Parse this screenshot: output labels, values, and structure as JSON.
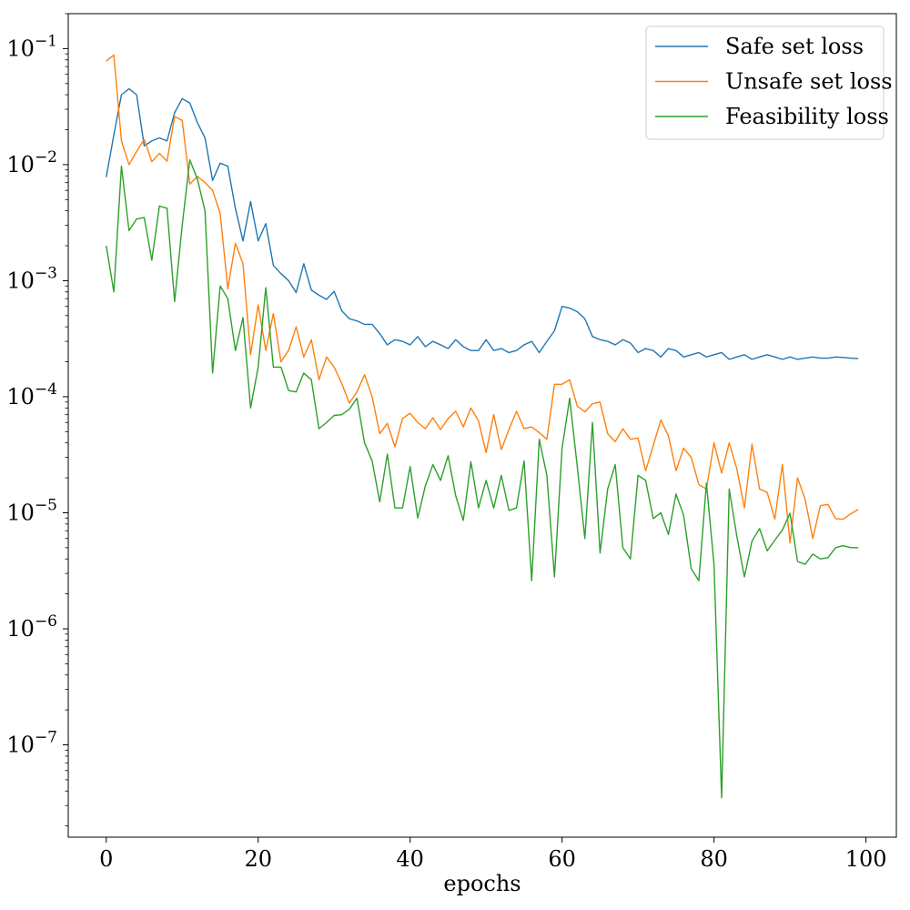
{
  "chart_data": {
    "type": "line",
    "title": "",
    "xlabel": "epochs",
    "ylabel": "",
    "yscale": "log",
    "xlim": [
      -5,
      104
    ],
    "ylim": [
      1.6e-08,
      0.2
    ],
    "x_ticks": [
      0,
      20,
      40,
      60,
      80,
      100
    ],
    "x_tick_labels": [
      "0",
      "20",
      "40",
      "60",
      "80",
      "100"
    ],
    "y_ticks": [
      1e-07,
      1e-06,
      1e-05,
      0.0001,
      0.001,
      0.01,
      0.1
    ],
    "y_tick_labels": [
      {
        "base": "10",
        "exp": "−7"
      },
      {
        "base": "10",
        "exp": "−6"
      },
      {
        "base": "10",
        "exp": "−5"
      },
      {
        "base": "10",
        "exp": "−4"
      },
      {
        "base": "10",
        "exp": "−3"
      },
      {
        "base": "10",
        "exp": "−2"
      },
      {
        "base": "10",
        "exp": "−1"
      }
    ],
    "grid": false,
    "legend_position": "top-right",
    "series": [
      {
        "name": "Safe set loss",
        "color": "#1f77b4",
        "values": [
          0.0078,
          0.018,
          0.04,
          0.045,
          0.04,
          0.0145,
          0.016,
          0.017,
          0.016,
          0.028,
          0.037,
          0.034,
          0.023,
          0.017,
          0.0073,
          0.0103,
          0.0097,
          0.0042,
          0.0022,
          0.0048,
          0.0022,
          0.0031,
          0.00135,
          0.00115,
          0.001,
          0.00079,
          0.0014,
          0.00083,
          0.00075,
          0.00069,
          0.00081,
          0.00055,
          0.00047,
          0.00045,
          0.00042,
          0.00042,
          0.00035,
          0.00028,
          0.00031,
          0.0003,
          0.00028,
          0.00033,
          0.00027,
          0.0003,
          0.00028,
          0.00026,
          0.00031,
          0.00027,
          0.00025,
          0.00025,
          0.00031,
          0.00025,
          0.00026,
          0.00024,
          0.00025,
          0.00028,
          0.0003,
          0.00024,
          0.0003,
          0.00037,
          0.0006,
          0.00058,
          0.00054,
          0.00047,
          0.00033,
          0.00031,
          0.0003,
          0.00028,
          0.00031,
          0.00029,
          0.00024,
          0.00026,
          0.00025,
          0.00022,
          0.00026,
          0.00025,
          0.00022,
          0.00023,
          0.00024,
          0.00022,
          0.00023,
          0.00024,
          0.00021,
          0.00022,
          0.00023,
          0.00021,
          0.00022,
          0.00023,
          0.00022,
          0.00021,
          0.00022,
          0.00021,
          0.000215,
          0.00022,
          0.000215,
          0.000215,
          0.00022,
          0.000218,
          0.000215,
          0.000213
        ]
      },
      {
        "name": "Unsafe set loss",
        "color": "#ff7f0e",
        "values": [
          0.078,
          0.088,
          0.016,
          0.01,
          0.013,
          0.0165,
          0.0106,
          0.0125,
          0.0107,
          0.026,
          0.024,
          0.0068,
          0.0079,
          0.007,
          0.006,
          0.0038,
          0.00085,
          0.0021,
          0.0014,
          0.00023,
          0.00062,
          0.00025,
          0.00052,
          0.0002,
          0.00025,
          0.0004,
          0.00022,
          0.00031,
          0.00014,
          0.00022,
          0.00018,
          0.00013,
          8.8e-05,
          0.00011,
          0.000155,
          0.0001,
          4.8e-05,
          5.9e-05,
          3.7e-05,
          6.5e-05,
          7.2e-05,
          6e-05,
          5.3e-05,
          6.6e-05,
          5.2e-05,
          6.5e-05,
          7.5e-05,
          5.5e-05,
          8e-05,
          6.2e-05,
          3.3e-05,
          7e-05,
          3.5e-05,
          5.2e-05,
          7.5e-05,
          5.3e-05,
          5.5e-05,
          4.9e-05,
          4.3e-05,
          0.000128,
          0.000128,
          0.00014,
          8.3e-05,
          7.4e-05,
          8.7e-05,
          9e-05,
          4.8e-05,
          4.1e-05,
          5.3e-05,
          4.3e-05,
          4.4e-05,
          2.3e-05,
          3.8e-05,
          6.3e-05,
          4.6e-05,
          2.3e-05,
          3.6e-05,
          3e-05,
          1.75e-05,
          1.6e-05,
          4e-05,
          2.2e-05,
          4e-05,
          2.4e-05,
          1.1e-05,
          3.9e-05,
          1.6e-05,
          1.5e-05,
          8.8e-06,
          2.6e-05,
          5.5e-06,
          2e-05,
          1.3e-05,
          6e-06,
          1.15e-05,
          1.18e-05,
          8.9e-06,
          8.8e-06,
          9.8e-06,
          1.07e-05
        ]
      },
      {
        "name": "Feasibility loss",
        "color": "#2ca02c",
        "values": [
          0.002,
          0.0008,
          0.0097,
          0.0027,
          0.0034,
          0.0035,
          0.0015,
          0.0044,
          0.0042,
          0.00066,
          0.003,
          0.011,
          0.0075,
          0.004,
          0.00016,
          0.0009,
          0.0007,
          0.00025,
          0.00048,
          8e-05,
          0.00018,
          0.00087,
          0.00018,
          0.00018,
          0.000113,
          0.00011,
          0.00016,
          0.00014,
          5.3e-05,
          6e-05,
          6.9e-05,
          7e-05,
          7.8e-05,
          9.7e-05,
          4e-05,
          2.8e-05,
          1.24e-05,
          3.2e-05,
          1.1e-05,
          1.1e-05,
          2.5e-05,
          9e-06,
          1.7e-05,
          2.6e-05,
          1.9e-05,
          3.1e-05,
          1.4e-05,
          8.6e-06,
          2.75e-05,
          1.1e-05,
          1.9e-05,
          1.1e-05,
          2.1e-05,
          1.05e-05,
          1.1e-05,
          2.8e-05,
          2.6e-06,
          4.3e-05,
          2.1e-05,
          2.8e-06,
          3.6e-05,
          9.7e-05,
          2.5e-05,
          6e-06,
          6e-05,
          4.5e-06,
          1.6e-05,
          2.6e-05,
          5e-06,
          4e-06,
          2.1e-05,
          1.9e-05,
          8.9e-06,
          1e-05,
          6.5e-06,
          1.45e-05,
          9.5e-06,
          3.3e-06,
          2.6e-06,
          1.8e-05,
          3.6e-06,
          3.5e-08,
          1.6e-05,
          6.3e-06,
          2.8e-06,
          5.7e-06,
          7.3e-06,
          4.7e-06,
          5.8e-06,
          7.1e-06,
          9.9e-06,
          3.8e-06,
          3.6e-06,
          4.4e-06,
          4e-06,
          4.1e-06,
          5e-06,
          5.2e-06,
          5e-06,
          5e-06
        ]
      }
    ]
  }
}
